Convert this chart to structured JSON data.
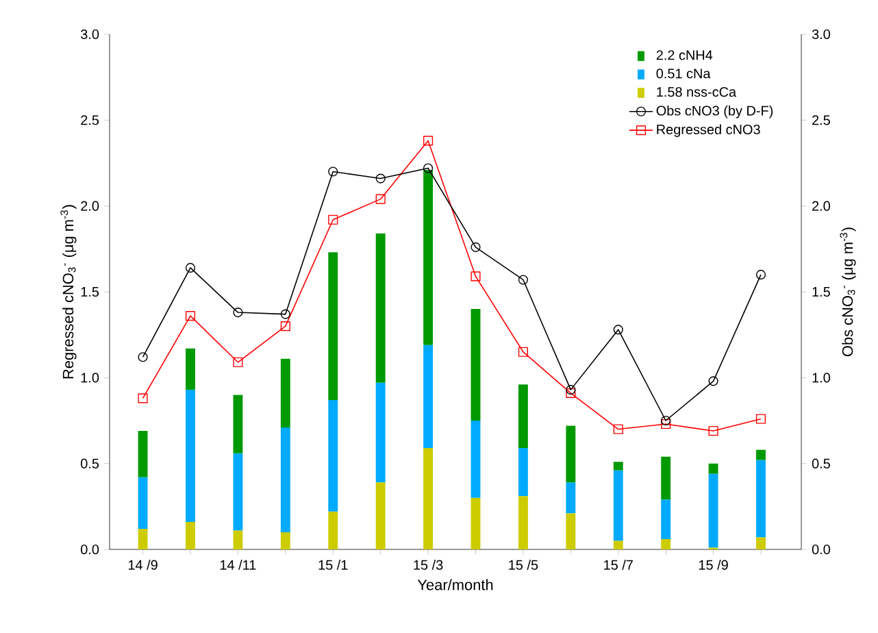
{
  "chart_data": {
    "type": "bar",
    "stacked": true,
    "legend": "top right",
    "xlabel": "Year/month",
    "ylabel": "Regressed cNO$_{3}$$^{-}$ (μg m$^{-3}$)",
    "y2label": "Obs cNO$_{3}$$^{-}$ (μg m$^{-3}$)",
    "categories": [
      "14 /9",
      null,
      "14 /11",
      null,
      "15 /1",
      null,
      "15 /3",
      null,
      "15 /5",
      null,
      "15 /7",
      null,
      "15 /9",
      null
    ],
    "ylim": [
      0,
      3
    ],
    "yticks": [
      {
        "value": 0,
        "label": "0.0"
      },
      0.5,
      {
        "value": 1,
        "label": "1.0"
      },
      1.5,
      {
        "value": 2,
        "label": "2.0"
      },
      2.5,
      {
        "value": 3,
        "label": "3.0"
      }
    ],
    "y2lim": [
      0,
      3
    ],
    "y2ticks": [
      {
        "value": 0,
        "label": "0.0"
      },
      0.5,
      {
        "value": 1,
        "label": "1.0"
      },
      1.5,
      {
        "value": 2,
        "label": "2.0"
      },
      2.5,
      {
        "value": 3,
        "label": "3.0"
      }
    ],
    "series": [
      {
        "name": "1.58 nss-cCa",
        "color": "#cccc00",
        "values": [
          0.12,
          0.16,
          0.11,
          0.1,
          0.22,
          0.39,
          0.59,
          0.3,
          0.31,
          0.21,
          0.05,
          0.06,
          0.01,
          0.07
        ]
      },
      {
        "name": "0.51 cNa",
        "color": "#00aaff",
        "values": [
          0.3,
          0.77,
          0.45,
          0.61,
          0.65,
          0.58,
          0.6,
          0.45,
          0.28,
          0.18,
          0.41,
          0.23,
          0.43,
          0.45
        ]
      },
      {
        "name": "2.2 cNH4",
        "color": "#009900",
        "values": [
          0.27,
          0.24,
          0.34,
          0.4,
          0.86,
          0.87,
          1.02,
          0.65,
          0.37,
          0.33,
          0.05,
          0.25,
          0.06,
          0.06
        ]
      },
      {
        "name": "Obs cNO3 (by D-F)",
        "type": "line",
        "axis": "y2",
        "color": "#000000",
        "marker": "circle",
        "values": [
          1.12,
          1.64,
          1.38,
          1.37,
          2.2,
          2.16,
          2.22,
          1.76,
          1.57,
          0.93,
          1.28,
          0.75,
          0.98,
          1.6
        ]
      },
      {
        "name": "Regressed cNO3",
        "type": "line",
        "color": "#ff0000",
        "marker": "square",
        "values": [
          0.88,
          1.36,
          1.09,
          1.3,
          1.92,
          2.04,
          2.38,
          1.59,
          1.15,
          0.91,
          0.7,
          0.73,
          0.69,
          0.76
        ]
      }
    ]
  }
}
